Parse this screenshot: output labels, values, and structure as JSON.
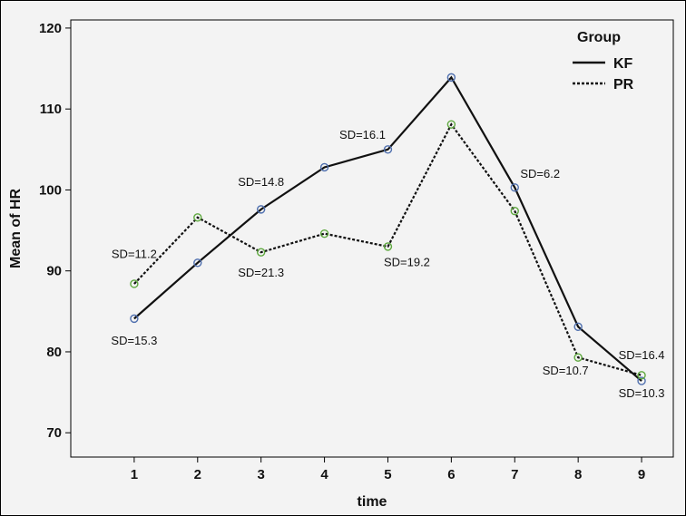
{
  "chart_data": {
    "type": "line",
    "xlabel": "time",
    "ylabel": "Mean of HR",
    "x": [
      1,
      2,
      3,
      4,
      5,
      6,
      7,
      8,
      9
    ],
    "xlim": [
      0,
      9.5
    ],
    "ylim": [
      67,
      121
    ],
    "yticks": [
      70,
      80,
      90,
      100,
      110,
      120
    ],
    "grid": false,
    "legend": {
      "title": "Group",
      "position": "top-right"
    },
    "series": [
      {
        "name": "KF",
        "style": "solid",
        "marker_color": "#4f6fae",
        "values": [
          84.1,
          91.0,
          97.6,
          102.8,
          105.0,
          113.9,
          100.3,
          83.1,
          76.4
        ]
      },
      {
        "name": "PR",
        "style": "dotted",
        "marker_color": "#5ea83e",
        "values": [
          88.4,
          96.6,
          92.3,
          94.6,
          93.0,
          108.1,
          97.4,
          79.3,
          77.1
        ]
      }
    ],
    "annotations": [
      {
        "text": "SD=11.2",
        "x": 1,
        "y": 91.6
      },
      {
        "text": "SD=15.3",
        "x": 1,
        "y": 80.9
      },
      {
        "text": "SD=14.8",
        "x": 3,
        "y": 100.5
      },
      {
        "text": "SD=21.3",
        "x": 3,
        "y": 89.3
      },
      {
        "text": "SD=16.1",
        "x": 4.6,
        "y": 106.3
      },
      {
        "text": "SD=19.2",
        "x": 5.3,
        "y": 90.6
      },
      {
        "text": "SD=6.2",
        "x": 7.4,
        "y": 101.5
      },
      {
        "text": "SD=10.7",
        "x": 7.8,
        "y": 77.2
      },
      {
        "text": "SD=16.4",
        "x": 9,
        "y": 79.1
      },
      {
        "text": "SD=10.3",
        "x": 9,
        "y": 74.4
      }
    ]
  }
}
